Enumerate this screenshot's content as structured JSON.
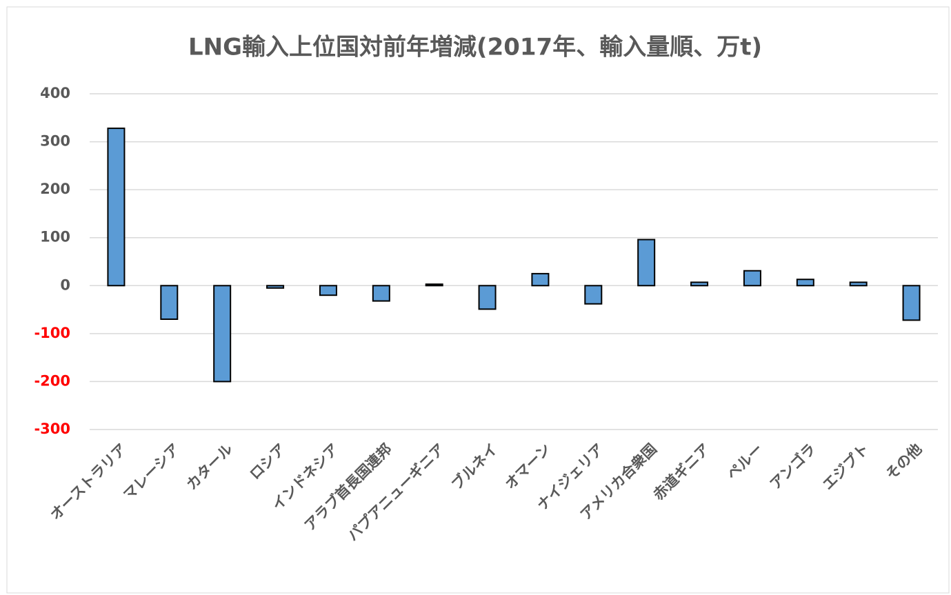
{
  "chart_data": {
    "type": "bar",
    "title": "LNG輸入上位国対前年増減(2017年、輸入量順、万t)",
    "categories": [
      "オーストラリア",
      "マレーシア",
      "カタール",
      "ロシア",
      "インドネシア",
      "アラブ首長国連邦",
      "パプアニューギニア",
      "ブルネイ",
      "オマーン",
      "ナイジェリア",
      "アメリカ合衆国",
      "赤道ギニア",
      "ペルー",
      "アンゴラ",
      "エジプト",
      "その他"
    ],
    "values": [
      328,
      -70,
      -200,
      -5,
      -20,
      -32,
      3,
      -49,
      25,
      -38,
      96,
      7,
      31,
      13,
      7,
      -72
    ],
    "color": "#5b9bd5",
    "ylim": [
      -300,
      400
    ],
    "yticks": [
      400,
      300,
      200,
      100,
      0,
      -100,
      -200,
      -300
    ],
    "negative_tick_color": "#ff0000",
    "grid": true
  }
}
